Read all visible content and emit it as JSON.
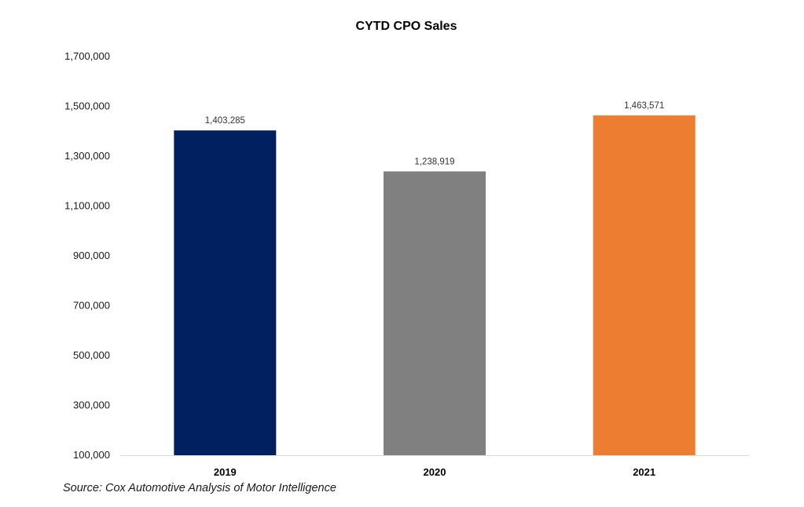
{
  "chart_data": {
    "type": "bar",
    "title": "CYTD CPO Sales",
    "xlabel": "",
    "ylabel": "",
    "categories": [
      "2019",
      "2020",
      "2021"
    ],
    "values": [
      1403285,
      1238919,
      1463571
    ],
    "data_labels": [
      "1,403,285",
      "1,238,919",
      "1,463,571"
    ],
    "bar_colors": [
      "#002060",
      "#808080",
      "#ED7D31"
    ],
    "ylim": [
      100000,
      1700000
    ],
    "y_ticks": [
      100000,
      300000,
      500000,
      700000,
      900000,
      1100000,
      1300000,
      1500000,
      1700000
    ],
    "y_tick_labels": [
      "100,000",
      "300,000",
      "500,000",
      "700,000",
      "900,000",
      "1,100,000",
      "1,300,000",
      "1,500,000",
      "1,700,000"
    ],
    "grid": false,
    "legend": "none"
  },
  "source_note": "Source: Cox Automotive Analysis of Motor Intelligence"
}
